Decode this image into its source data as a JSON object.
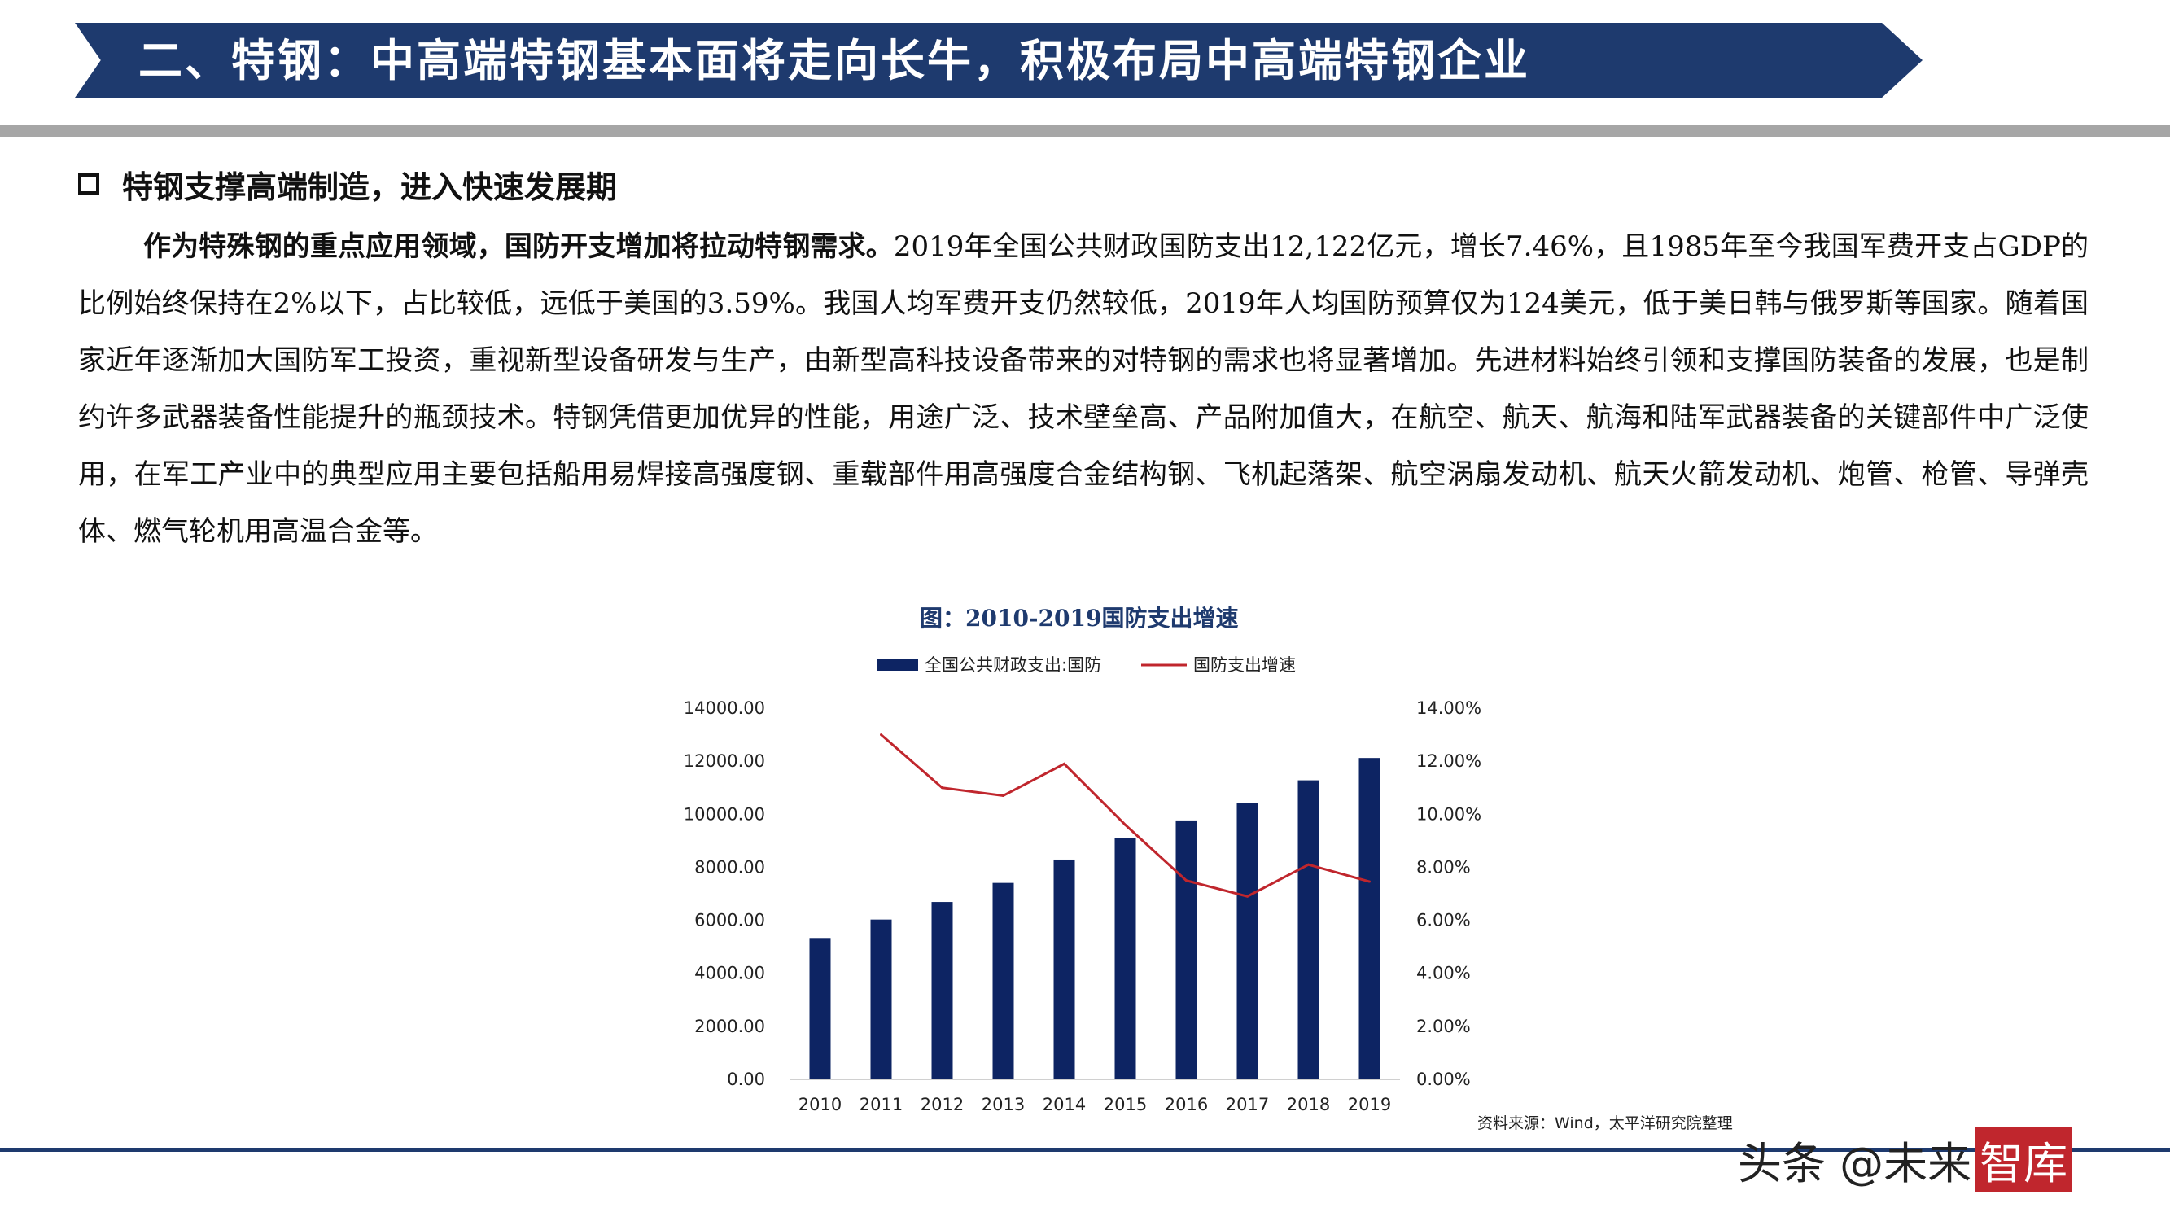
{
  "header": {
    "title": "二、特钢：中高端特钢基本面将走向长牛，积极布局中高端特钢企业"
  },
  "section": {
    "heading": "特钢支撑高端制造，进入快速发展期"
  },
  "body": {
    "bold_lead": "作为特殊钢的重点应用领域，国防开支增加将拉动特钢需求。",
    "text": "2019年全国公共财政国防支出12,122亿元，增长7.46%，且1985年至今我国军费开支占GDP的比例始终保持在2%以下，占比较低，远低于美国的3.59%。我国人均军费开支仍然较低，2019年人均国防预算仅为124美元，低于美日韩与俄罗斯等国家。随着国家近年逐渐加大国防军工投资，重视新型设备研发与生产，由新型高科技设备带来的对特钢的需求也将显著增加。先进材料始终引领和支撑国防装备的发展，也是制约许多武器装备性能提升的瓶颈技术。特钢凭借更加优异的性能，用途广泛、技术壁垒高、产品附加值大，在航空、航天、航海和陆军武器装备的关键部件中广泛使用，在军工产业中的典型应用主要包括船用易焊接高强度钢、重载部件用高强度合金结构钢、飞机起落架、航空涡扇发动机、航天火箭发动机、炮管、枪管、导弹壳体、燃气轮机用高温合金等。"
  },
  "chart_data": {
    "type": "bar",
    "title": "图：2010-2019国防支出增速",
    "categories": [
      "2010",
      "2011",
      "2012",
      "2013",
      "2014",
      "2015",
      "2016",
      "2017",
      "2018",
      "2019"
    ],
    "series": [
      {
        "name": "全国公共财政支出:国防",
        "type": "bar",
        "axis": "left",
        "color": "#0d2463",
        "values": [
          5333,
          6028,
          6691,
          7410,
          8290,
          9088,
          9766,
          10432,
          11280,
          12122
        ]
      },
      {
        "name": "国防支出增速",
        "type": "line",
        "axis": "right",
        "color": "#c0262d",
        "values": [
          null,
          13.0,
          11.0,
          10.7,
          11.9,
          9.6,
          7.5,
          6.9,
          8.1,
          7.46
        ]
      }
    ],
    "left_axis": {
      "ylim": [
        0,
        14000
      ],
      "ticks": [
        "0.00",
        "2000.00",
        "4000.00",
        "6000.00",
        "8000.00",
        "10000.00",
        "12000.00",
        "14000.00"
      ]
    },
    "right_axis": {
      "ylim": [
        0,
        14
      ],
      "ticks": [
        "0.00%",
        "2.00%",
        "4.00%",
        "6.00%",
        "8.00%",
        "10.00%",
        "12.00%",
        "14.00%"
      ]
    },
    "legend_position": "top",
    "grid": false
  },
  "source": "资料来源：Wind，太平洋研究院整理",
  "watermark": {
    "prefix": "头条 @未来",
    "boxed": "智库"
  }
}
